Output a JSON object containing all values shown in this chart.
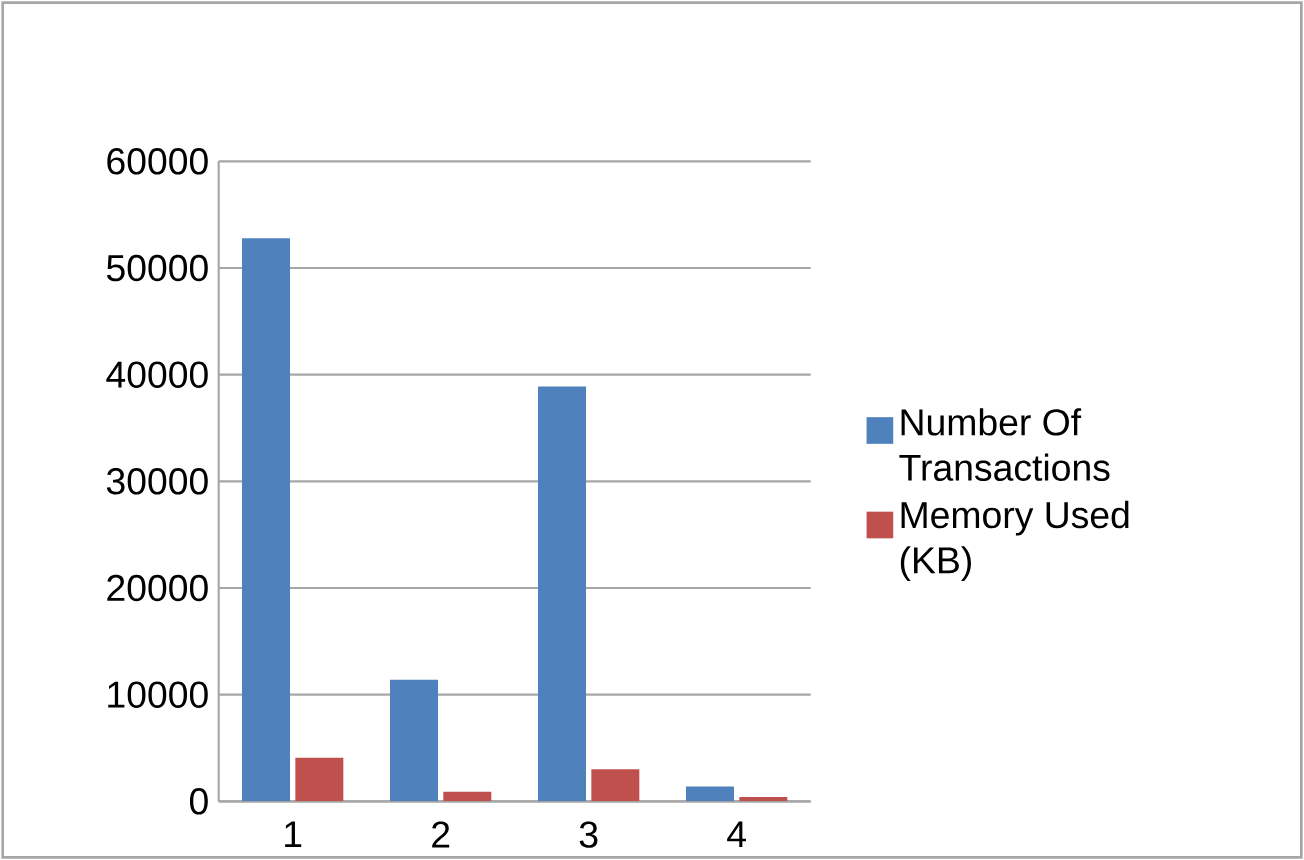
{
  "chart_data": {
    "type": "bar",
    "categories": [
      "1",
      "2",
      "3",
      "4"
    ],
    "series": [
      {
        "name": "Number Of Transactions",
        "color": "#4f81bd",
        "values": [
          52800,
          11400,
          38900,
          1400
        ]
      },
      {
        "name": "Memory Used (KB)",
        "color": "#c0504d",
        "values": [
          4100,
          900,
          3000,
          400
        ]
      }
    ],
    "ylim": [
      0,
      60000
    ],
    "yticks": [
      0,
      10000,
      20000,
      30000,
      40000,
      50000,
      60000
    ],
    "grid": "y",
    "legend": "right"
  }
}
